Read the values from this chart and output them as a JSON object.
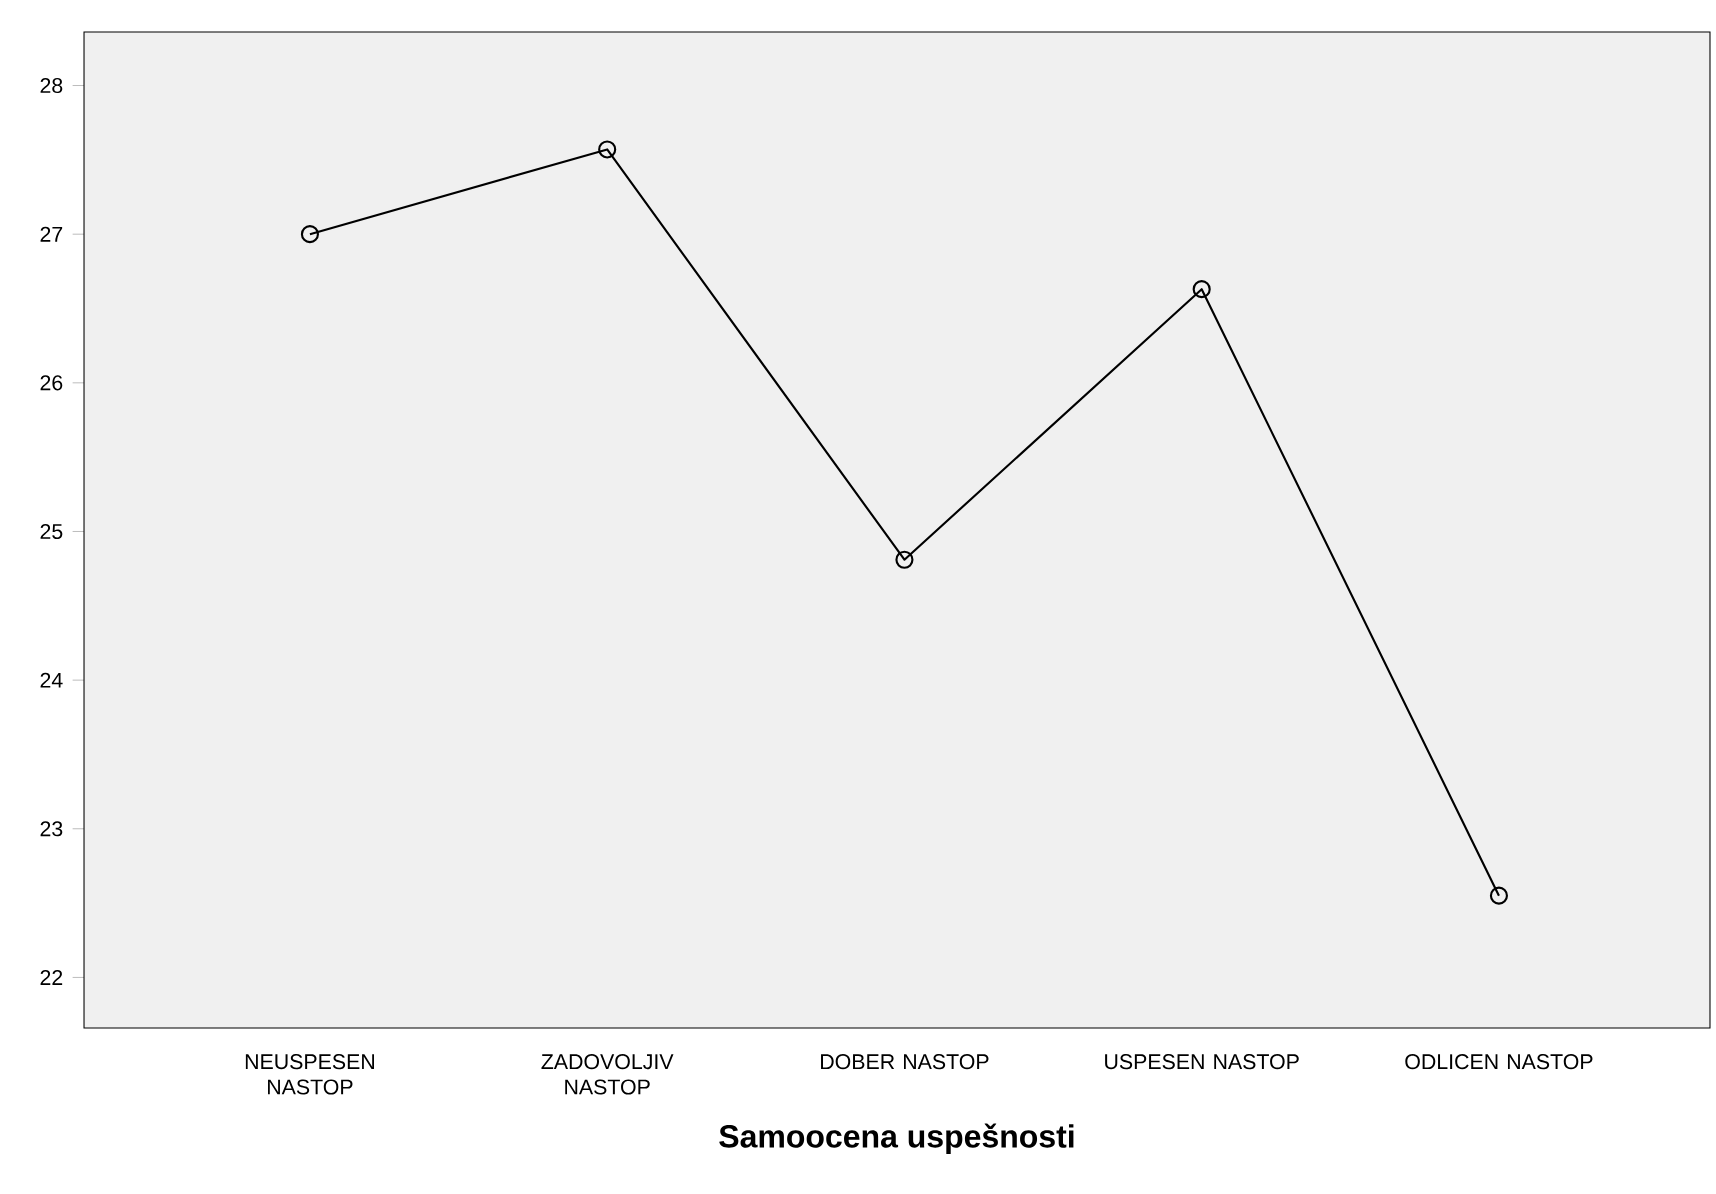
{
  "chart_data": {
    "type": "line",
    "xlabel": "Samoocena uspešnosti",
    "categories": [
      "NEUSPESEN NASTOP",
      "ZADOVOLJIV NASTOP",
      "DOBER NASTOP",
      "USPESEN NASTOP",
      "ODLICEN NASTOP"
    ],
    "values": [
      27.0,
      27.57,
      24.81,
      26.63,
      22.55
    ],
    "color": "#000000",
    "marker": "circle",
    "line_style": "solid",
    "grid": false,
    "ylim": [
      21.66,
      28.36
    ],
    "yticks": [
      22,
      23,
      24,
      25,
      26,
      27,
      28
    ]
  }
}
